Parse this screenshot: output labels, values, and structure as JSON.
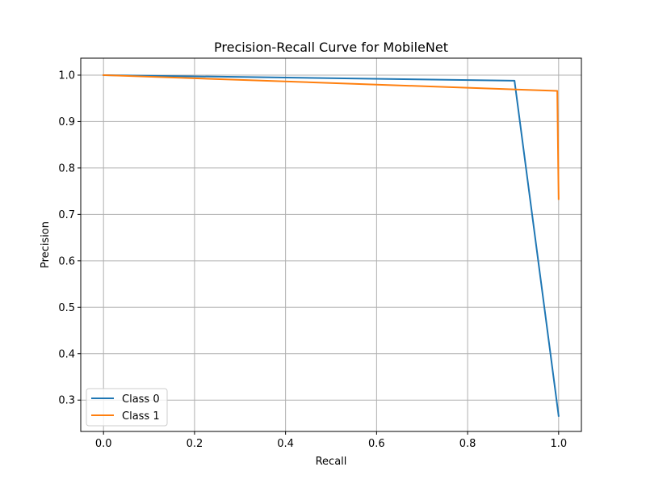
{
  "chart_data": {
    "type": "line",
    "title": "Precision-Recall Curve for MobileNet",
    "xlabel": "Recall",
    "ylabel": "Precision",
    "xlim": [
      -0.05,
      1.05
    ],
    "ylim": [
      0.2325,
      1.0365
    ],
    "x_ticks": [
      0.0,
      0.2,
      0.4,
      0.6,
      0.8,
      1.0
    ],
    "x_tick_labels": [
      "0.0",
      "0.2",
      "0.4",
      "0.6",
      "0.8",
      "1.0"
    ],
    "y_ticks": [
      0.3,
      0.4,
      0.5,
      0.6,
      0.7,
      0.8,
      0.9,
      1.0
    ],
    "y_tick_labels": [
      "0.3",
      "0.4",
      "0.5",
      "0.6",
      "0.7",
      "0.8",
      "0.9",
      "1.0"
    ],
    "grid": true,
    "legend_position": "lower-left",
    "series": [
      {
        "name": "Class 0",
        "color": "#1f77b4",
        "points": [
          [
            0.0,
            1.0
          ],
          [
            0.903,
            0.988
          ],
          [
            1.0,
            0.266
          ]
        ]
      },
      {
        "name": "Class 1",
        "color": "#ff7f0e",
        "points": [
          [
            0.0,
            1.0
          ],
          [
            0.997,
            0.966
          ],
          [
            1.0,
            0.733
          ]
        ]
      }
    ]
  }
}
